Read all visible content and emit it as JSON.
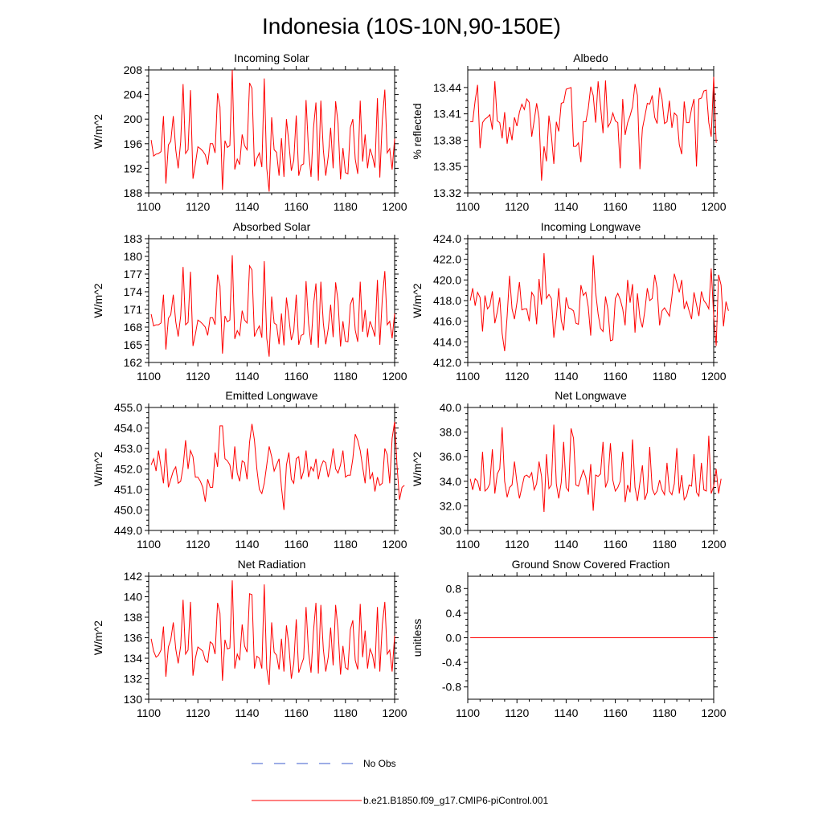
{
  "figure": {
    "title": "Indonesia (10S-10N,90-150E)",
    "line_color": "#ff0000",
    "obs_color": "#3b5bcc"
  },
  "legend": {
    "items": [
      {
        "label": "No Obs",
        "style": "dashed",
        "color": "#3b5bcc"
      },
      {
        "label": "b.e21.B1850.f09_g17.CMIP6-piControl.001",
        "style": "solid",
        "color": "#ff0000"
      }
    ]
  },
  "chart_data": [
    {
      "type": "line",
      "title": "Incoming Solar",
      "xlabel": "",
      "ylabel": "W/m^2",
      "xlim": [
        1100,
        1200
      ],
      "ylim": [
        188,
        208
      ],
      "xticks": [
        1100,
        1120,
        1140,
        1160,
        1180,
        1200
      ],
      "yticks": [
        188,
        192,
        196,
        200,
        204,
        208
      ],
      "ytick_labels": [
        "188",
        "192",
        "196",
        "200",
        "204",
        "208"
      ],
      "x_start": 1101,
      "series": [
        {
          "name": "b.e21.B1850.f09_g17.CMIP6-piControl.001",
          "values": [
            196.6,
            194.0,
            194.3,
            194.4,
            194.7,
            200.5,
            189.5,
            195.8,
            196.4,
            200.5,
            195.0,
            192.0,
            196.3,
            205.7,
            194.4,
            195.0,
            204.7,
            190.3,
            192.7,
            195.5,
            195.2,
            194.8,
            194.2,
            192.6,
            196.0,
            196.0,
            194.5,
            204.2,
            202.0,
            188.5,
            196.5,
            195.4,
            195.7,
            208.0,
            191.8,
            193.5,
            192.6,
            197.5,
            195.7,
            195.0,
            205.9,
            205.0,
            192.3,
            193.6,
            194.5,
            192.2,
            206.6,
            192.0,
            188.2,
            200.3,
            195.0,
            194.6,
            190.8,
            196.9,
            190.6,
            200.0,
            196.2,
            191.6,
            193.3,
            200.6,
            190.8,
            192.5,
            192.7,
            203.1,
            194.9,
            190.6,
            198.5,
            202.7,
            190.0,
            203.0,
            195.0,
            190.8,
            193.9,
            198.6,
            192.0,
            202.9,
            199.3,
            190.2,
            195.3,
            191.3,
            191.1,
            198.6,
            200.0,
            193.5,
            191.1,
            203.0,
            193.1,
            197.5,
            192.0,
            195.2,
            193.9,
            192.1,
            203.4,
            190.5,
            199.9,
            204.8,
            194.5,
            195.2,
            191.8,
            196.8
          ]
        }
      ]
    },
    {
      "type": "line",
      "title": "Albedo",
      "xlabel": "",
      "ylabel": "% reflected",
      "xlim": [
        1100,
        1200
      ],
      "ylim": [
        13.32,
        13.46
      ],
      "xticks": [
        1100,
        1120,
        1140,
        1160,
        1180,
        1200
      ],
      "yticks": [
        13.32,
        13.35,
        13.38,
        13.41,
        13.44
      ],
      "ytick_labels": [
        "13.32",
        "13.35",
        "13.38",
        "13.41",
        "13.44"
      ],
      "x_start": 1101,
      "series": [
        {
          "name": "b.e21.B1850.f09_g17.CMIP6-piControl.001",
          "values": [
            13.401,
            13.401,
            13.425,
            13.443,
            13.371,
            13.4,
            13.404,
            13.406,
            13.409,
            13.392,
            13.447,
            13.402,
            13.4,
            13.382,
            13.412,
            13.376,
            13.395,
            13.38,
            13.406,
            13.396,
            13.412,
            13.421,
            13.415,
            13.427,
            13.423,
            13.384,
            13.402,
            13.422,
            13.405,
            13.334,
            13.373,
            13.356,
            13.408,
            13.386,
            13.353,
            13.401,
            13.39,
            13.422,
            13.423,
            13.438,
            13.439,
            13.44,
            13.373,
            13.373,
            13.377,
            13.355,
            13.401,
            13.401,
            13.416,
            13.441,
            13.431,
            13.4,
            13.447,
            13.419,
            13.388,
            13.448,
            13.395,
            13.4,
            13.411,
            13.402,
            13.4,
            13.348,
            13.427,
            13.386,
            13.4,
            13.408,
            13.418,
            13.444,
            13.431,
            13.347,
            13.393,
            13.407,
            13.422,
            13.421,
            13.431,
            13.406,
            13.399,
            13.44,
            13.427,
            13.399,
            13.401,
            13.425,
            13.394,
            13.411,
            13.408,
            13.375,
            13.364,
            13.424,
            13.4,
            13.4,
            13.416,
            13.427,
            13.35,
            13.427,
            13.428,
            13.436,
            13.437,
            13.4,
            13.384,
            13.452,
            13.377
          ]
        }
      ]
    },
    {
      "type": "line",
      "title": "Absorbed Solar",
      "xlabel": "",
      "ylabel": "W/m^2",
      "xlim": [
        1100,
        1200
      ],
      "ylim": [
        162,
        183
      ],
      "xticks": [
        1100,
        1120,
        1140,
        1160,
        1180,
        1200
      ],
      "yticks": [
        162,
        165,
        168,
        171,
        174,
        177,
        180,
        183
      ],
      "ytick_labels": [
        "162",
        "165",
        "168",
        "171",
        "174",
        "177",
        "180",
        "183"
      ],
      "x_start": 1101,
      "series": [
        {
          "name": "b.e21.B1850.f09_g17.CMIP6-piControl.001",
          "values": [
            170.2,
            168.2,
            168.4,
            168.4,
            168.7,
            173.5,
            164.2,
            169.5,
            170.1,
            173.5,
            168.9,
            166.4,
            169.9,
            178.2,
            168.4,
            168.8,
            177.4,
            164.8,
            166.8,
            169.2,
            168.9,
            168.5,
            168.0,
            166.6,
            169.6,
            169.6,
            168.4,
            176.9,
            175.0,
            163.5,
            169.9,
            168.9,
            169.2,
            180.2,
            166.0,
            167.4,
            166.6,
            170.8,
            169.2,
            168.7,
            178.4,
            177.7,
            166.4,
            167.4,
            168.2,
            166.2,
            179.2,
            166.1,
            163.0,
            173.2,
            168.7,
            168.4,
            165.1,
            170.3,
            164.9,
            173.0,
            169.7,
            165.8,
            167.3,
            173.5,
            165.0,
            166.6,
            166.8,
            175.8,
            168.7,
            165.0,
            171.7,
            175.4,
            164.5,
            175.7,
            168.7,
            165.1,
            167.7,
            171.8,
            166.3,
            175.6,
            172.4,
            164.7,
            169.0,
            165.6,
            165.5,
            171.8,
            173.0,
            167.5,
            165.5,
            175.7,
            167.2,
            170.9,
            166.3,
            169.0,
            167.8,
            166.4,
            176.0,
            165.0,
            172.9,
            177.5,
            168.4,
            169.0,
            166.1,
            170.3
          ]
        }
      ]
    },
    {
      "type": "line",
      "title": "Incoming Longwave",
      "xlabel": "",
      "ylabel": "W/m^2",
      "xlim": [
        1100,
        1200
      ],
      "ylim": [
        412,
        424
      ],
      "xticks": [
        1100,
        1120,
        1140,
        1160,
        1180,
        1200
      ],
      "yticks": [
        412,
        414,
        416,
        418,
        420,
        422,
        424
      ],
      "ytick_labels": [
        "412.0",
        "414.0",
        "416.0",
        "418.0",
        "420.0",
        "422.0",
        "424.0"
      ],
      "x_start": 1101,
      "series": [
        {
          "name": "b.e21.B1850.f09_g17.CMIP6-piControl.001",
          "values": [
            418.0,
            419.2,
            417.5,
            418.8,
            418.3,
            415.0,
            418.5,
            417.2,
            417.5,
            418.9,
            415.8,
            416.9,
            418.3,
            414.8,
            413.1,
            416.5,
            420.4,
            417.2,
            416.2,
            417.8,
            419.8,
            417.1,
            417.2,
            417.2,
            416.0,
            418.8,
            418.4,
            415.7,
            420.1,
            417.6,
            422.6,
            418.2,
            418.6,
            418.2,
            414.4,
            416.4,
            419.2,
            416.1,
            415.1,
            418.3,
            417.3,
            417.2,
            417.0,
            415.8,
            415.7,
            419.5,
            418.5,
            418.8,
            417.4,
            414.6,
            422.4,
            418.8,
            416.7,
            415.3,
            415.0,
            418.4,
            417.1,
            414.1,
            414.2,
            418.2,
            418.7,
            418.1,
            417.2,
            415.6,
            420.0,
            417.8,
            419.6,
            414.9,
            418.7,
            416.3,
            415.4,
            417.0,
            419.2,
            418.0,
            418.2,
            420.5,
            419.2,
            415.6,
            417.0,
            417.3,
            416.9,
            416.5,
            418.4,
            420.6,
            419.7,
            418.8,
            420.0,
            417.2,
            417.9,
            417.0,
            416.2,
            418.8,
            417.6,
            416.5,
            418.9,
            418.0,
            417.7,
            417.2,
            421.1,
            416.5,
            413.6,
            420.5,
            419.5,
            415.5,
            417.9,
            417.0
          ]
        }
      ]
    },
    {
      "type": "line",
      "title": "Emitted Longwave",
      "xlabel": "",
      "ylabel": "W/m^2",
      "xlim": [
        1100,
        1200
      ],
      "ylim": [
        449,
        455
      ],
      "xticks": [
        1100,
        1120,
        1140,
        1160,
        1180,
        1200
      ],
      "yticks": [
        449,
        450,
        451,
        452,
        453,
        454,
        455
      ],
      "ytick_labels": [
        "449.0",
        "450.0",
        "451.0",
        "452.0",
        "453.0",
        "454.0",
        "455.0"
      ],
      "x_start": 1101,
      "series": [
        {
          "name": "b.e21.B1850.f09_g17.CMIP6-piControl.001",
          "values": [
            452.2,
            452.5,
            451.9,
            452.9,
            452.1,
            451.3,
            453.0,
            451.1,
            451.5,
            451.9,
            452.1,
            451.3,
            451.4,
            452.1,
            453.4,
            452.0,
            452.9,
            452.6,
            451.6,
            451.6,
            451.4,
            451.1,
            450.4,
            451.5,
            451.1,
            451.1,
            452.8,
            452.1,
            454.1,
            454.1,
            452.5,
            452.4,
            452.2,
            451.5,
            453.1,
            451.8,
            451.4,
            452.4,
            452.3,
            451.5,
            453.3,
            454.2,
            453.4,
            452.0,
            451.0,
            450.8,
            451.3,
            452.2,
            453.1,
            452.6,
            451.9,
            452.2,
            452.5,
            451.1,
            450.0,
            452.2,
            452.8,
            451.5,
            451.3,
            452.5,
            452.6,
            451.5,
            451.9,
            452.9,
            451.6,
            452.1,
            451.9,
            452.5,
            451.5,
            452.1,
            452.4,
            452.3,
            451.6,
            452.1,
            453.0,
            452.0,
            451.8,
            452.2,
            452.9,
            451.6,
            451.7,
            451.7,
            452.5,
            453.7,
            453.4,
            452.9,
            452.1,
            451.3,
            453.0,
            451.5,
            451.8,
            450.9,
            451.6,
            451.2,
            451.3,
            453.0,
            452.7,
            451.3,
            453.5,
            454.3,
            452.1,
            450.5,
            451.1,
            451.2
          ]
        }
      ]
    },
    {
      "type": "line",
      "title": "Net Longwave",
      "xlabel": "",
      "ylabel": "W/m^2",
      "xlim": [
        1100,
        1200
      ],
      "ylim": [
        30,
        40
      ],
      "xticks": [
        1100,
        1120,
        1140,
        1160,
        1180,
        1200
      ],
      "yticks": [
        30,
        32,
        34,
        36,
        38,
        40
      ],
      "ytick_labels": [
        "30.0",
        "32.0",
        "34.0",
        "36.0",
        "38.0",
        "40.0"
      ],
      "x_start": 1101,
      "series": [
        {
          "name": "b.e21.B1850.f09_g17.CMIP6-piControl.001",
          "values": [
            34.2,
            33.3,
            34.2,
            34.0,
            33.2,
            36.4,
            33.2,
            33.4,
            33.8,
            36.6,
            33.0,
            34.6,
            35.0,
            38.4,
            34.0,
            32.7,
            33.5,
            33.7,
            35.6,
            33.9,
            32.6,
            33.5,
            34.4,
            34.5,
            34.3,
            34.7,
            33.3,
            33.8,
            35.6,
            34.4,
            31.5,
            36.2,
            33.4,
            33.7,
            38.6,
            33.8,
            32.6,
            33.9,
            37.2,
            33.5,
            33.2,
            38.3,
            37.5,
            33.7,
            33.6,
            34.3,
            34.9,
            34.3,
            32.9,
            35.4,
            31.6,
            34.5,
            34.4,
            34.6,
            37.2,
            33.5,
            34.1,
            37.1,
            34.1,
            33.2,
            33.5,
            34.0,
            36.4,
            32.3,
            33.7,
            33.1,
            37.4,
            33.5,
            32.4,
            33.9,
            35.3,
            32.5,
            33.1,
            36.8,
            33.4,
            32.9,
            33.2,
            34.1,
            33.3,
            32.9,
            35.5,
            33.2,
            32.9,
            33.8,
            36.7,
            33.0,
            34.5,
            32.5,
            32.8,
            33.7,
            33.6,
            36.2,
            33.1,
            32.8,
            35.5,
            33.3,
            33.2,
            37.7,
            33.0,
            33.6,
            35.0,
            33.0,
            34.2
          ]
        }
      ]
    },
    {
      "type": "line",
      "title": "Net Radiation",
      "xlabel": "",
      "ylabel": "W/m^2",
      "xlim": [
        1100,
        1200
      ],
      "ylim": [
        130,
        142
      ],
      "xticks": [
        1100,
        1120,
        1140,
        1160,
        1180,
        1200
      ],
      "yticks": [
        130,
        132,
        134,
        136,
        138,
        140,
        142
      ],
      "ytick_labels": [
        "130",
        "132",
        "134",
        "136",
        "138",
        "140",
        "142"
      ],
      "x_start": 1101,
      "series": [
        {
          "name": "b.e21.B1850.f09_g17.CMIP6-piControl.001",
          "values": [
            135.9,
            134.7,
            134.1,
            134.3,
            134.8,
            137.1,
            132.2,
            135.1,
            135.8,
            137.5,
            134.9,
            133.5,
            135.2,
            139.7,
            134.4,
            134.8,
            139.5,
            132.3,
            134.0,
            135.1,
            134.9,
            134.7,
            133.8,
            133.6,
            135.6,
            135.4,
            134.4,
            139.4,
            138.4,
            131.8,
            135.8,
            134.9,
            135.0,
            141.6,
            133.0,
            134.4,
            133.8,
            137.3,
            135.2,
            134.6,
            140.3,
            140.2,
            133.0,
            134.2,
            134.0,
            133.0,
            141.2,
            133.0,
            131.4,
            137.5,
            134.6,
            134.3,
            132.9,
            135.9,
            132.7,
            137.2,
            135.3,
            132.0,
            133.5,
            137.8,
            132.6,
            133.3,
            134.0,
            139.0,
            134.6,
            132.6,
            136.6,
            139.4,
            132.5,
            139.2,
            134.9,
            132.7,
            134.1,
            137.0,
            133.3,
            139.2,
            136.8,
            132.4,
            135.2,
            133.1,
            132.9,
            136.8,
            137.7,
            133.8,
            132.9,
            139.3,
            134.1,
            136.7,
            133.0,
            134.9,
            134.3,
            133.0,
            139.0,
            132.7,
            137.3,
            139.5,
            134.4,
            134.8,
            132.7,
            136.2
          ]
        }
      ]
    },
    {
      "type": "line",
      "title": "Ground Snow Covered Fraction",
      "xlabel": "",
      "ylabel": "unitless",
      "xlim": [
        1100,
        1200
      ],
      "ylim": [
        -1.0,
        1.0
      ],
      "xticks": [
        1100,
        1120,
        1140,
        1160,
        1180,
        1200
      ],
      "yticks": [
        -0.8,
        -0.4,
        0.0,
        0.4,
        0.8
      ],
      "ytick_labels": [
        "-0.8",
        "-0.4",
        "0.0",
        "0.4",
        "0.8"
      ],
      "x_start": 1101,
      "series": [
        {
          "name": "b.e21.B1850.f09_g17.CMIP6-piControl.001",
          "values": [
            0.0,
            0.0
          ]
        }
      ],
      "series_x": [
        1101,
        1200
      ]
    }
  ]
}
